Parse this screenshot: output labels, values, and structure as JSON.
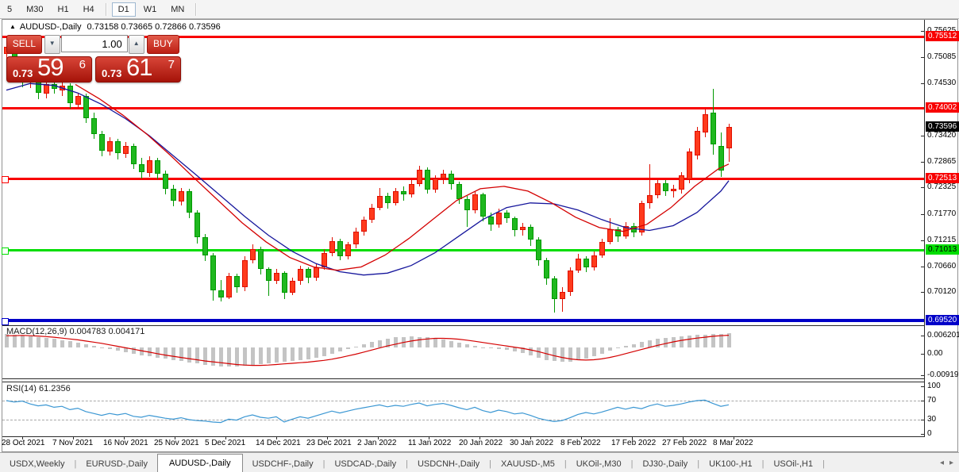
{
  "toolbar": {
    "timeframes": [
      "5",
      "M30",
      "H1",
      "H4",
      "D1",
      "W1",
      "MN"
    ],
    "active": "D1"
  },
  "title": {
    "marker": "▲",
    "symbol": "AUDUSD-,Daily",
    "ohlc": "0.73158 0.73665 0.72866 0.73596"
  },
  "trade_panel": {
    "sell_label": "SELL",
    "buy_label": "BUY",
    "volume": "1.00",
    "sell_price": {
      "prefix": "0.73",
      "big": "59",
      "sup": "6"
    },
    "buy_price": {
      "prefix": "0.73",
      "big": "61",
      "sup": "7"
    }
  },
  "macd_panel": {
    "label": "MACD(12,26,9)",
    "main_value": "0.004783",
    "signal_value": "0.004171",
    "axis": [
      "0.006201",
      "0.00",
      "-0.009197"
    ]
  },
  "rsi_panel": {
    "label": "RSI(14)",
    "value": "61.2356",
    "axis": [
      "100",
      "70",
      "30",
      "0"
    ]
  },
  "tabs": {
    "active": "AUDUSD-,Daily",
    "items": [
      "USDX,Weekly",
      "EURUSD-,Daily",
      "AUDUSD-,Daily",
      "USDCHF-,Daily",
      "USDCAD-,Daily",
      "USDCNH-,Daily",
      "XAUUSD-,M5",
      "UKOil-,M30",
      "DJ30-,Daily",
      "UK100-,H1",
      "USOil-,H1"
    ]
  },
  "colors": {
    "up_fill": "#ff3a1c",
    "up_border": "#df0f00",
    "down_fill": "#1fb81f",
    "down_border": "#009900",
    "level_red": "#f80000",
    "level_green": "#00dd00",
    "level_blue": "#0000c8",
    "ma_red": "#d40000",
    "ma_blue": "#16169c",
    "macd_bar": "#c4c4c4",
    "macd_signal": "#d40000",
    "rsi_line": "#3b97d3",
    "current_label_bg": "#000000"
  },
  "chart_data": {
    "type": "candlestick",
    "title": "AUDUSD-,Daily",
    "ohlc_current": {
      "open": 0.73158,
      "high": 0.73665,
      "low": 0.72866,
      "close": 0.73596
    },
    "x_dates": [
      "28 Oct 2021",
      "7 Nov 2021",
      "16 Nov 2021",
      "25 Nov 2021",
      "5 Dec 2021",
      "14 Dec 2021",
      "23 Dec 2021",
      "2 Jan 2022",
      "11 Jan 2022",
      "20 Jan 2022",
      "30 Jan 2022",
      "8 Feb 2022",
      "17 Feb 2022",
      "27 Feb 2022",
      "8 Mar 2022"
    ],
    "y_ticks": [
      "0.75625",
      "0.75085",
      "0.74530",
      "0.73420",
      "0.72865",
      "0.72325",
      "0.71770",
      "0.71215",
      "0.70660",
      "0.70120"
    ],
    "levels": [
      {
        "price": 0.75512,
        "label": "0.75512",
        "color": "red",
        "thickness": 3,
        "handle": false
      },
      {
        "price": 0.74002,
        "label": "0.74002",
        "color": "red",
        "thickness": 3,
        "handle": false
      },
      {
        "price": 0.72513,
        "label": "0.72513",
        "color": "red",
        "thickness": 3,
        "handle": true
      },
      {
        "price": 0.71013,
        "label": "0.71013",
        "color": "green",
        "thickness": 3,
        "handle": true
      },
      {
        "price": 0.6952,
        "label": "0.69520",
        "color": "blue",
        "thickness": 4,
        "handle": true
      }
    ],
    "current_price_label": "0.73596",
    "candles": [
      [
        0.7515,
        0.7552,
        0.7498,
        0.753
      ],
      [
        0.753,
        0.7538,
        0.7478,
        0.7488
      ],
      [
        0.7488,
        0.7495,
        0.7445,
        0.7455
      ],
      [
        0.7455,
        0.7472,
        0.7442,
        0.7465
      ],
      [
        0.7465,
        0.747,
        0.742,
        0.7432
      ],
      [
        0.743,
        0.7458,
        0.7422,
        0.745
      ],
      [
        0.745,
        0.7462,
        0.743,
        0.744
      ],
      [
        0.7438,
        0.7455,
        0.7425,
        0.7448
      ],
      [
        0.7448,
        0.7452,
        0.7398,
        0.741
      ],
      [
        0.7408,
        0.7432,
        0.74,
        0.7425
      ],
      [
        0.7425,
        0.743,
        0.7368,
        0.7378
      ],
      [
        0.7378,
        0.739,
        0.7335,
        0.7345
      ],
      [
        0.7345,
        0.7352,
        0.7298,
        0.731
      ],
      [
        0.7308,
        0.7338,
        0.73,
        0.733
      ],
      [
        0.733,
        0.7335,
        0.7292,
        0.7305
      ],
      [
        0.7303,
        0.7328,
        0.7295,
        0.732
      ],
      [
        0.732,
        0.7325,
        0.7272,
        0.7282
      ],
      [
        0.7282,
        0.7295,
        0.7252,
        0.7265
      ],
      [
        0.7263,
        0.7298,
        0.7255,
        0.729
      ],
      [
        0.729,
        0.7295,
        0.725,
        0.7262
      ],
      [
        0.7262,
        0.7268,
        0.7218,
        0.723
      ],
      [
        0.723,
        0.7238,
        0.7192,
        0.7205
      ],
      [
        0.7203,
        0.7232,
        0.7195,
        0.7225
      ],
      [
        0.7225,
        0.723,
        0.7168,
        0.718
      ],
      [
        0.718,
        0.7185,
        0.7115,
        0.7128
      ],
      [
        0.7128,
        0.7135,
        0.7078,
        0.709
      ],
      [
        0.709,
        0.7095,
        0.6995,
        0.7015
      ],
      [
        0.7015,
        0.7038,
        0.6993,
        0.7
      ],
      [
        0.7,
        0.7052,
        0.6996,
        0.7045
      ],
      [
        0.7045,
        0.705,
        0.701,
        0.7022
      ],
      [
        0.7022,
        0.7088,
        0.7015,
        0.708
      ],
      [
        0.708,
        0.7112,
        0.7072,
        0.7102
      ],
      [
        0.7102,
        0.7108,
        0.705,
        0.706
      ],
      [
        0.706,
        0.7065,
        0.7005,
        0.7035
      ],
      [
        0.7035,
        0.706,
        0.7028,
        0.7052
      ],
      [
        0.7052,
        0.7056,
        0.6998,
        0.701
      ],
      [
        0.701,
        0.7042,
        0.7005,
        0.7035
      ],
      [
        0.7035,
        0.7068,
        0.7028,
        0.706
      ],
      [
        0.706,
        0.7065,
        0.7032,
        0.7042
      ],
      [
        0.7042,
        0.7072,
        0.7035,
        0.7065
      ],
      [
        0.7065,
        0.7102,
        0.7058,
        0.7095
      ],
      [
        0.7095,
        0.7128,
        0.7088,
        0.712
      ],
      [
        0.712,
        0.7125,
        0.708,
        0.7088
      ],
      [
        0.7088,
        0.7118,
        0.7082,
        0.7112
      ],
      [
        0.7112,
        0.7148,
        0.7105,
        0.714
      ],
      [
        0.714,
        0.7172,
        0.7132,
        0.7165
      ],
      [
        0.7165,
        0.7198,
        0.7158,
        0.719
      ],
      [
        0.719,
        0.7232,
        0.7185,
        0.7215
      ],
      [
        0.7215,
        0.7222,
        0.7188,
        0.72
      ],
      [
        0.72,
        0.7232,
        0.7195,
        0.7225
      ],
      [
        0.7225,
        0.7235,
        0.7205,
        0.7218
      ],
      [
        0.7218,
        0.7252,
        0.7212,
        0.724
      ],
      [
        0.724,
        0.7278,
        0.7235,
        0.727
      ],
      [
        0.727,
        0.7275,
        0.722,
        0.7228
      ],
      [
        0.7228,
        0.7258,
        0.7222,
        0.7252
      ],
      [
        0.7252,
        0.727,
        0.724,
        0.7262
      ],
      [
        0.7262,
        0.7268,
        0.7228,
        0.724
      ],
      [
        0.724,
        0.7245,
        0.7198,
        0.7208
      ],
      [
        0.7208,
        0.7215,
        0.715,
        0.7185
      ],
      [
        0.7185,
        0.7225,
        0.7178,
        0.7218
      ],
      [
        0.7218,
        0.7222,
        0.7162,
        0.7172
      ],
      [
        0.7172,
        0.718,
        0.7142,
        0.7155
      ],
      [
        0.7155,
        0.7188,
        0.7148,
        0.718
      ],
      [
        0.718,
        0.7185,
        0.7158,
        0.7168
      ],
      [
        0.7168,
        0.7172,
        0.713,
        0.7142
      ],
      [
        0.7142,
        0.7158,
        0.7132,
        0.715
      ],
      [
        0.715,
        0.7155,
        0.711,
        0.7122
      ],
      [
        0.7122,
        0.7128,
        0.7068,
        0.708
      ],
      [
        0.708,
        0.7085,
        0.7028,
        0.704
      ],
      [
        0.704,
        0.7045,
        0.6968,
        0.6998
      ],
      [
        0.6998,
        0.7022,
        0.697,
        0.7012
      ],
      [
        0.7012,
        0.7065,
        0.7005,
        0.7058
      ],
      [
        0.7058,
        0.7092,
        0.7052,
        0.7082
      ],
      [
        0.7082,
        0.7088,
        0.7055,
        0.7065
      ],
      [
        0.7065,
        0.7098,
        0.7058,
        0.709
      ],
      [
        0.709,
        0.7125,
        0.7085,
        0.7118
      ],
      [
        0.7118,
        0.7168,
        0.7112,
        0.7145
      ],
      [
        0.7145,
        0.715,
        0.7118,
        0.713
      ],
      [
        0.713,
        0.716,
        0.7125,
        0.7152
      ],
      [
        0.7152,
        0.7158,
        0.7128,
        0.7138
      ],
      [
        0.7138,
        0.7205,
        0.7132,
        0.7199
      ],
      [
        0.7199,
        0.7281,
        0.7188,
        0.7216
      ],
      [
        0.7216,
        0.725,
        0.721,
        0.7242
      ],
      [
        0.7242,
        0.7248,
        0.7215,
        0.7225
      ],
      [
        0.7225,
        0.7238,
        0.7212,
        0.723
      ],
      [
        0.7228,
        0.7265,
        0.722,
        0.7258
      ],
      [
        0.725,
        0.7315,
        0.7242,
        0.7308
      ],
      [
        0.73,
        0.736,
        0.7292,
        0.7352
      ],
      [
        0.7348,
        0.7398,
        0.734,
        0.7388
      ],
      [
        0.7391,
        0.7441,
        0.7302,
        0.7324
      ],
      [
        0.732,
        0.7349,
        0.7255,
        0.7268
      ],
      [
        0.73158,
        0.73665,
        0.72866,
        0.73596
      ]
    ],
    "ma_red": [
      [
        95,
        0.745
      ],
      [
        125,
        0.742
      ],
      [
        155,
        0.7385
      ],
      [
        185,
        0.7345
      ],
      [
        215,
        0.73
      ],
      [
        245,
        0.7252
      ],
      [
        275,
        0.7205
      ],
      [
        305,
        0.7158
      ],
      [
        335,
        0.7118
      ],
      [
        365,
        0.7085
      ],
      [
        395,
        0.7065
      ],
      [
        425,
        0.7058
      ],
      [
        455,
        0.7065
      ],
      [
        485,
        0.709
      ],
      [
        515,
        0.7125
      ],
      [
        545,
        0.7165
      ],
      [
        575,
        0.7205
      ],
      [
        605,
        0.723
      ],
      [
        635,
        0.7235
      ],
      [
        665,
        0.7225
      ],
      [
        695,
        0.72
      ],
      [
        725,
        0.717
      ],
      [
        755,
        0.7148
      ],
      [
        785,
        0.714
      ],
      [
        815,
        0.7155
      ],
      [
        845,
        0.719
      ],
      [
        875,
        0.7235
      ],
      [
        905,
        0.7272
      ],
      [
        918,
        0.7282
      ]
    ],
    "ma_blue": [
      [
        8,
        0.7438
      ],
      [
        38,
        0.7452
      ],
      [
        68,
        0.7448
      ],
      [
        98,
        0.7432
      ],
      [
        128,
        0.7408
      ],
      [
        158,
        0.7378
      ],
      [
        188,
        0.7342
      ],
      [
        218,
        0.73
      ],
      [
        248,
        0.7258
      ],
      [
        278,
        0.7215
      ],
      [
        308,
        0.7172
      ],
      [
        338,
        0.7132
      ],
      [
        368,
        0.7098
      ],
      [
        398,
        0.7072
      ],
      [
        428,
        0.7055
      ],
      [
        458,
        0.7048
      ],
      [
        488,
        0.7052
      ],
      [
        518,
        0.7068
      ],
      [
        548,
        0.7095
      ],
      [
        578,
        0.713
      ],
      [
        608,
        0.7165
      ],
      [
        638,
        0.719
      ],
      [
        668,
        0.72
      ],
      [
        698,
        0.7198
      ],
      [
        728,
        0.7185
      ],
      [
        758,
        0.7165
      ],
      [
        788,
        0.7148
      ],
      [
        818,
        0.7142
      ],
      [
        848,
        0.7152
      ],
      [
        878,
        0.718
      ],
      [
        908,
        0.7225
      ],
      [
        918,
        0.7247
      ]
    ],
    "macd": {
      "current_main": 0.004783,
      "current_signal": 0.004171,
      "range_max": 0.006201,
      "range_min": -0.009197,
      "histogram": [
        0.0045,
        0.0043,
        0.0041,
        0.0038,
        0.0035,
        0.0032,
        0.0029,
        0.0025,
        0.0021,
        0.0017,
        0.0012,
        0.0006,
        0.0,
        -0.0006,
        -0.0011,
        -0.0016,
        -0.0021,
        -0.0026,
        -0.0031,
        -0.0035,
        -0.0039,
        -0.0043,
        -0.0047,
        -0.0051,
        -0.0055,
        -0.0059,
        -0.0062,
        -0.0064,
        -0.0065,
        -0.0064,
        -0.0062,
        -0.0059,
        -0.0056,
        -0.0053,
        -0.0051,
        -0.0049,
        -0.0047,
        -0.0044,
        -0.004,
        -0.0035,
        -0.0029,
        -0.0022,
        -0.0014,
        -0.0006,
        0.0002,
        0.001,
        0.0018,
        0.0025,
        0.003,
        0.0034,
        0.0036,
        0.0037,
        0.0036,
        0.0034,
        0.0031,
        0.0027,
        0.0022,
        0.0016,
        0.001,
        0.0005,
        0.0001,
        -0.0002,
        -0.0005,
        -0.0009,
        -0.0014,
        -0.002,
        -0.0027,
        -0.0035,
        -0.0042,
        -0.0047,
        -0.0049,
        -0.0048,
        -0.0044,
        -0.0038,
        -0.003,
        -0.0021,
        -0.0012,
        -0.0003,
        0.0005,
        0.0012,
        0.0018,
        0.0024,
        0.0029,
        0.0033,
        0.0036,
        0.0039,
        0.0041,
        0.0043,
        0.0044,
        0.0045,
        0.0046,
        0.00478
      ],
      "signal": [
        0.004,
        0.004,
        0.0041,
        0.004,
        0.0039,
        0.0037,
        0.0035,
        0.0032,
        0.0029,
        0.0026,
        0.0022,
        0.0018,
        0.0014,
        0.0009,
        0.0004,
        -0.0001,
        -0.0006,
        -0.0011,
        -0.0016,
        -0.0021,
        -0.0026,
        -0.003,
        -0.0034,
        -0.0038,
        -0.0042,
        -0.0046,
        -0.0049,
        -0.0052,
        -0.0055,
        -0.0058,
        -0.006,
        -0.0061,
        -0.0061,
        -0.006,
        -0.0058,
        -0.0056,
        -0.0054,
        -0.0052,
        -0.005,
        -0.0047,
        -0.0044,
        -0.004,
        -0.0035,
        -0.0029,
        -0.0023,
        -0.0016,
        -0.0009,
        -0.0002,
        0.0005,
        0.0011,
        0.0017,
        0.0022,
        0.0026,
        0.0029,
        0.0031,
        0.0031,
        0.003,
        0.0028,
        0.0025,
        0.0021,
        0.0017,
        0.0013,
        0.0009,
        0.0005,
        0.0001,
        -0.0003,
        -0.0008,
        -0.0014,
        -0.0021,
        -0.0028,
        -0.0034,
        -0.0039,
        -0.0042,
        -0.0043,
        -0.0042,
        -0.0039,
        -0.0034,
        -0.0028,
        -0.0021,
        -0.0014,
        -0.0007,
        0.0,
        0.0007,
        0.0013,
        0.0019,
        0.0024,
        0.0028,
        0.0032,
        0.0035,
        0.0038,
        0.004,
        0.00417
      ]
    },
    "rsi": {
      "current": 61.2356,
      "overbought": 70,
      "oversold": 30,
      "values": [
        70,
        67,
        69,
        63,
        59,
        61,
        56,
        58,
        51,
        54,
        47,
        43,
        39,
        43,
        40,
        43,
        37,
        35,
        39,
        36,
        33,
        31,
        34,
        30,
        28,
        27,
        25,
        24,
        31,
        29,
        36,
        40,
        35,
        33,
        36,
        25,
        31,
        36,
        33,
        38,
        43,
        48,
        44,
        48,
        52,
        55,
        58,
        61,
        57,
        60,
        58,
        62,
        65,
        59,
        62,
        64,
        60,
        55,
        51,
        56,
        49,
        45,
        50,
        47,
        42,
        44,
        39,
        33,
        29,
        26,
        28,
        34,
        41,
        45,
        42,
        46,
        51,
        56,
        52,
        56,
        53,
        59,
        63,
        58,
        60,
        63,
        67,
        70,
        71,
        64,
        58,
        61.24
      ]
    }
  }
}
